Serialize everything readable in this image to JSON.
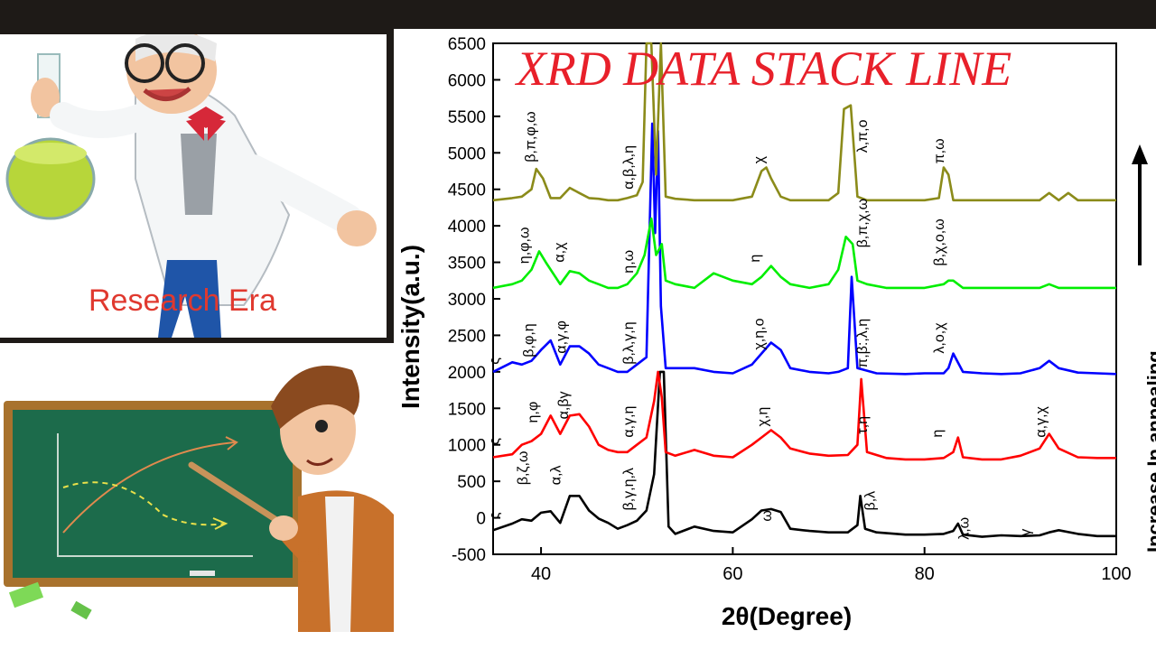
{
  "brand_text": "Research Era",
  "chart_data": {
    "type": "line",
    "title": "XRD DATA STACK LINE",
    "xlabel": "2θ(Degree)",
    "ylabel": "Intensity(a.u.)",
    "side_label": "Increase In annealing",
    "xlim": [
      35,
      100
    ],
    "ylim": [
      -500,
      6500
    ],
    "xticks": [
      40,
      60,
      80,
      100
    ],
    "yticks": [
      -500,
      0,
      500,
      1000,
      1500,
      2000,
      2500,
      3000,
      3500,
      4000,
      4500,
      5000,
      5500,
      6000,
      6500
    ],
    "grid": false,
    "series": [
      {
        "color": "#000000",
        "x": [
          35,
          37,
          38,
          39,
          40,
          41,
          42,
          43,
          44,
          45,
          46,
          47,
          48,
          49,
          50,
          51,
          51.8,
          52.4,
          52.8,
          53.3,
          54,
          56,
          58,
          60,
          62,
          63,
          64,
          65,
          66,
          68,
          70,
          72,
          73,
          73.3,
          73.8,
          75,
          78,
          80,
          82,
          83,
          83.5,
          84,
          86,
          88,
          90,
          92,
          93,
          94,
          96,
          98,
          100
        ],
        "y": [
          -170,
          -80,
          -20,
          -40,
          70,
          90,
          -70,
          300,
          300,
          100,
          -10,
          -70,
          -150,
          -100,
          -40,
          100,
          600,
          2000,
          2000,
          -120,
          -220,
          -120,
          -180,
          -200,
          -20,
          100,
          120,
          80,
          -150,
          -180,
          -200,
          -200,
          -100,
          300,
          -150,
          -200,
          -230,
          -230,
          -220,
          -180,
          -80,
          -230,
          -260,
          -240,
          -250,
          -240,
          -200,
          -170,
          -220,
          -250,
          -250
        ]
      },
      {
        "color": "#ff0000",
        "x": [
          35,
          37,
          38,
          39,
          40,
          41,
          42,
          43,
          44,
          45,
          46,
          47,
          48,
          49,
          50,
          51,
          51.8,
          52.2,
          52.6,
          53,
          54,
          56,
          58,
          60,
          62,
          63,
          64,
          65,
          66,
          68,
          70,
          72,
          73,
          73.4,
          74,
          76,
          78,
          80,
          82,
          83,
          83.5,
          84,
          86,
          88,
          90,
          92,
          93,
          94,
          96,
          98,
          100
        ],
        "y": [
          830,
          870,
          1000,
          1050,
          1150,
          1400,
          1150,
          1400,
          1420,
          1250,
          1000,
          930,
          900,
          900,
          1000,
          1100,
          1600,
          2000,
          1650,
          900,
          850,
          930,
          850,
          830,
          1000,
          1100,
          1200,
          1100,
          950,
          880,
          850,
          860,
          1000,
          1900,
          900,
          820,
          800,
          800,
          820,
          900,
          1100,
          830,
          800,
          800,
          850,
          950,
          1150,
          950,
          830,
          820,
          820
        ]
      },
      {
        "color": "#0000ff",
        "x": [
          35,
          37,
          38,
          39,
          40,
          41,
          42,
          43,
          44,
          45,
          46,
          47,
          48,
          49,
          50,
          51,
          51.6,
          51.9,
          52.2,
          52.5,
          53,
          54,
          56,
          58,
          60,
          62,
          63,
          64,
          65,
          66,
          68,
          70,
          71,
          72,
          72.4,
          73,
          75,
          78,
          80,
          82,
          82.5,
          83,
          84,
          86,
          88,
          90,
          92,
          93,
          94,
          96,
          98,
          100
        ],
        "y": [
          2000,
          2130,
          2100,
          2150,
          2300,
          2430,
          2100,
          2350,
          2350,
          2250,
          2100,
          2050,
          2000,
          2000,
          2100,
          2200,
          5400,
          3900,
          5300,
          2900,
          2050,
          2050,
          2050,
          2000,
          1980,
          2100,
          2250,
          2400,
          2300,
          2050,
          2000,
          1980,
          2000,
          2050,
          3300,
          2050,
          1980,
          1970,
          1980,
          1980,
          2050,
          2250,
          2000,
          1980,
          1970,
          1980,
          2050,
          2150,
          2050,
          1990,
          1980,
          1970
        ]
      },
      {
        "color": "#00ee00",
        "x": [
          35,
          37,
          38,
          39,
          39.8,
          40.5,
          42,
          43,
          44,
          45,
          46,
          47,
          48,
          49,
          50,
          50.8,
          51.5,
          52,
          52.6,
          53,
          54,
          56,
          58,
          60,
          62,
          63,
          64,
          65,
          66,
          68,
          70,
          71,
          71.8,
          72.5,
          73,
          74,
          76,
          78,
          80,
          82,
          82.5,
          83,
          84,
          86,
          88,
          90,
          92,
          93,
          94,
          96,
          98,
          100
        ],
        "y": [
          3150,
          3200,
          3250,
          3400,
          3650,
          3500,
          3200,
          3380,
          3350,
          3250,
          3200,
          3150,
          3150,
          3200,
          3350,
          3600,
          4100,
          3600,
          3750,
          3250,
          3200,
          3150,
          3350,
          3250,
          3200,
          3300,
          3450,
          3300,
          3200,
          3150,
          3200,
          3400,
          3850,
          3750,
          3250,
          3200,
          3150,
          3150,
          3150,
          3200,
          3250,
          3250,
          3150,
          3150,
          3150,
          3150,
          3150,
          3200,
          3150,
          3150,
          3150,
          3150
        ]
      },
      {
        "color": "#8b8b1a",
        "x": [
          35,
          37,
          38,
          39,
          39.5,
          40.2,
          41,
          42,
          43,
          44,
          45,
          46,
          47,
          48,
          49,
          50,
          50.6,
          51,
          51.5,
          52,
          52.5,
          53,
          54,
          56,
          58,
          60,
          62,
          63,
          63.5,
          64,
          65,
          66,
          68,
          70,
          71,
          71.6,
          72.3,
          73,
          74,
          76,
          78,
          80,
          81.5,
          82,
          82.5,
          83,
          84,
          86,
          88,
          90,
          92,
          93,
          94,
          95,
          96,
          98,
          100
        ],
        "y": [
          4350,
          4380,
          4400,
          4500,
          4780,
          4650,
          4380,
          4380,
          4520,
          4450,
          4380,
          4370,
          4350,
          4350,
          4380,
          4420,
          4600,
          6500,
          6500,
          4700,
          6500,
          4400,
          4370,
          4350,
          4350,
          4350,
          4400,
          4750,
          4800,
          4650,
          4400,
          4350,
          4350,
          4350,
          4450,
          5600,
          5650,
          4400,
          4350,
          4350,
          4350,
          4350,
          4380,
          4800,
          4700,
          4350,
          4350,
          4350,
          4350,
          4350,
          4350,
          4450,
          4350,
          4450,
          4350,
          4350,
          4350
        ]
      }
    ],
    "annotations": [
      {
        "text": "β,π,φ,ω",
        "x": 39.4,
        "y": 4870
      },
      {
        "text": "α,β,λ,η",
        "x": 49.6,
        "y": 4500
      },
      {
        "text": "χ",
        "x": 63.2,
        "y": 4850
      },
      {
        "text": "λ,π,ο",
        "x": 74.0,
        "y": 5000
      },
      {
        "text": "π,ω",
        "x": 82.0,
        "y": 4850
      },
      {
        "text": "η,φ,ω",
        "x": 38.7,
        "y": 3480
      },
      {
        "text": "α,χ",
        "x": 42.4,
        "y": 3500
      },
      {
        "text": "η,ω",
        "x": 49.6,
        "y": 3350
      },
      {
        "text": "η",
        "x": 62.8,
        "y": 3500
      },
      {
        "text": "β,π,χ,ω",
        "x": 74.0,
        "y": 3700
      },
      {
        "text": "β,χ,ο,ω",
        "x": 82.0,
        "y": 3450
      },
      {
        "text": "β,φ,η",
        "x": 39.2,
        "y": 2200
      },
      {
        "text": "α,γ,φ",
        "x": 42.6,
        "y": 2250
      },
      {
        "text": "β,λ,γ,η",
        "x": 49.6,
        "y": 2100
      },
      {
        "text": "χ,η,ο",
        "x": 63.2,
        "y": 2300
      },
      {
        "text": "π,β:,λ,η",
        "x": 74.0,
        "y": 2050
      },
      {
        "text": "λ,ο,χ",
        "x": 82.0,
        "y": 2250
      },
      {
        "text": "η,φ",
        "x": 39.6,
        "y": 1300
      },
      {
        "text": "α,βγ",
        "x": 42.8,
        "y": 1350
      },
      {
        "text": "α,γ,η",
        "x": 49.6,
        "y": 1100
      },
      {
        "text": "χ,η",
        "x": 63.6,
        "y": 1250
      },
      {
        "text": "τ,η",
        "x": 74.0,
        "y": 1150
      },
      {
        "text": "η",
        "x": 81.8,
        "y": 1100
      },
      {
        "text": "α,γ,χ",
        "x": 92.6,
        "y": 1100
      },
      {
        "text": "β,ζ,ω",
        "x": 38.6,
        "y": 450
      },
      {
        "text": "α,λ",
        "x": 42.0,
        "y": 450
      },
      {
        "text": "β,γ,η,λ",
        "x": 49.6,
        "y": 100
      },
      {
        "text": "ω",
        "x": 64.0,
        "y": -50
      },
      {
        "text": "β,λ",
        "x": 74.8,
        "y": 100
      },
      {
        "text": "λ,ω",
        "x": 84.6,
        "y": -300
      },
      {
        "text": "ς",
        "x": 35.6,
        "y": -20
      },
      {
        "text": "ς",
        "x": 35.6,
        "y": 1000
      },
      {
        "text": "ς",
        "x": 35.6,
        "y": 2100
      },
      {
        "text": "γ",
        "x": 91.0,
        "y": -250
      }
    ]
  }
}
